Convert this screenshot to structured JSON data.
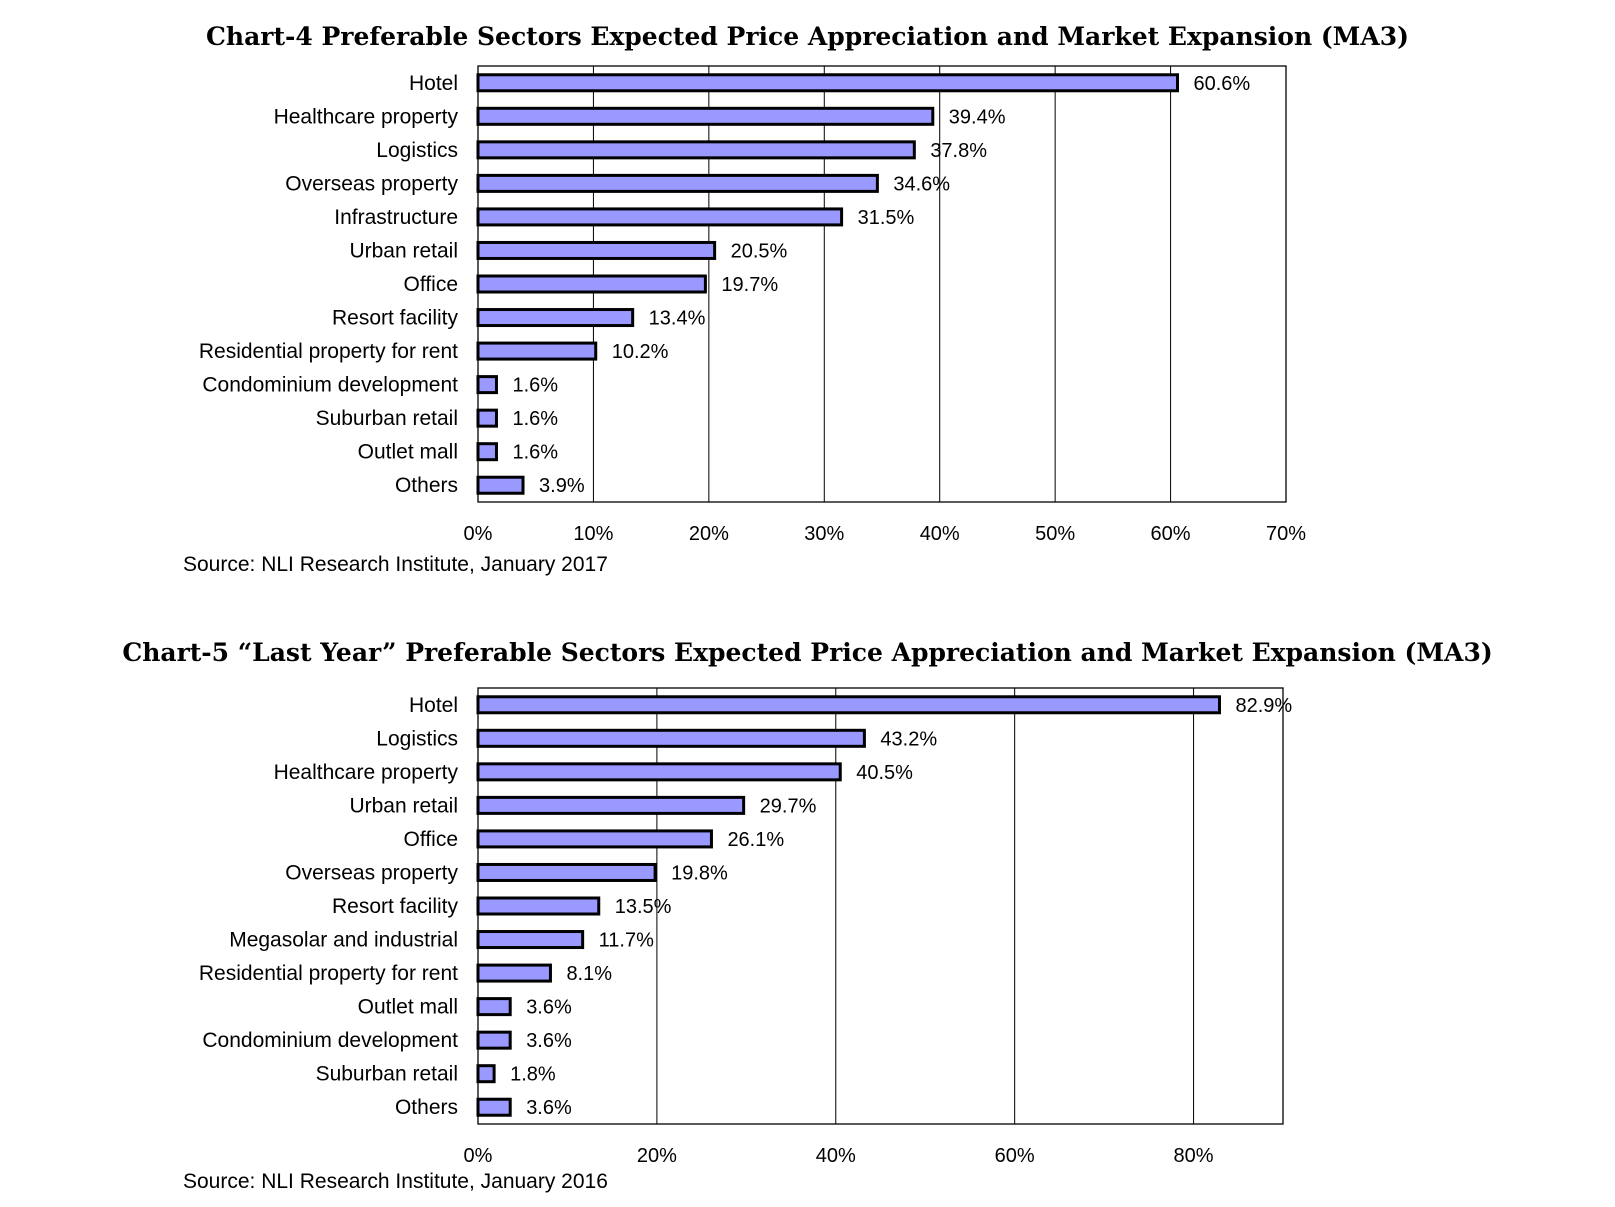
{
  "chart_data": [
    {
      "type": "bar",
      "orientation": "horizontal",
      "title": "Chart-4 Preferable Sectors Expected Price Appreciation and Market Expansion (MA3)",
      "source": "Source: NLI Research Institute, January 2017",
      "categories": [
        "Hotel",
        "Healthcare property",
        "Logistics",
        "Overseas property",
        "Infrastructure",
        "Urban retail",
        "Office",
        "Resort facility",
        "Residential property for rent",
        "Condominium development",
        "Suburban retail",
        "Outlet mall",
        "Others"
      ],
      "values": [
        60.6,
        39.4,
        37.8,
        34.6,
        31.5,
        20.5,
        19.7,
        13.4,
        10.2,
        1.6,
        1.6,
        1.6,
        3.9
      ],
      "value_labels": [
        "60.6%",
        "39.4%",
        "37.8%",
        "34.6%",
        "31.5%",
        "20.5%",
        "19.7%",
        "13.4%",
        "10.2%",
        "1.6%",
        "1.6%",
        "1.6%",
        "3.9%"
      ],
      "xlim": [
        0,
        70
      ],
      "x_ticks": [
        0,
        10,
        20,
        30,
        40,
        50,
        60,
        70
      ],
      "x_tick_labels": [
        "0%",
        "10%",
        "20%",
        "30%",
        "40%",
        "50%",
        "60%",
        "70%"
      ],
      "xlabel": "",
      "ylabel": "",
      "grid": "vertical",
      "legend": "none",
      "bar_color": "#9999ff",
      "bar_edge_color": "#000000"
    },
    {
      "type": "bar",
      "orientation": "horizontal",
      "title": "Chart-5 “Last Year” Preferable Sectors Expected Price Appreciation and Market Expansion (MA3)",
      "source": "Source: NLI Research Institute, January 2016",
      "categories": [
        "Hotel",
        "Logistics",
        "Healthcare property",
        "Urban retail",
        "Office",
        "Overseas property",
        "Resort facility",
        "Megasolar and industrial",
        "Residential property for rent",
        "Outlet mall",
        "Condominium development",
        "Suburban retail",
        "Others"
      ],
      "values": [
        82.9,
        43.2,
        40.5,
        29.7,
        26.1,
        19.8,
        13.5,
        11.7,
        8.1,
        3.6,
        3.6,
        1.8,
        3.6
      ],
      "value_labels": [
        "82.9%",
        "43.2%",
        "40.5%",
        "29.7%",
        "26.1%",
        "19.8%",
        "13.5%",
        "11.7%",
        "8.1%",
        "3.6%",
        "3.6%",
        "1.8%",
        "3.6%"
      ],
      "xlim": [
        0,
        90
      ],
      "x_ticks": [
        0,
        20,
        40,
        60,
        80
      ],
      "x_tick_labels": [
        "0%",
        "20%",
        "40%",
        "60%",
        "80%"
      ],
      "xlabel": "",
      "ylabel": "",
      "grid": "vertical",
      "legend": "none",
      "bar_color": "#9999ff",
      "bar_edge_color": "#000000"
    }
  ]
}
